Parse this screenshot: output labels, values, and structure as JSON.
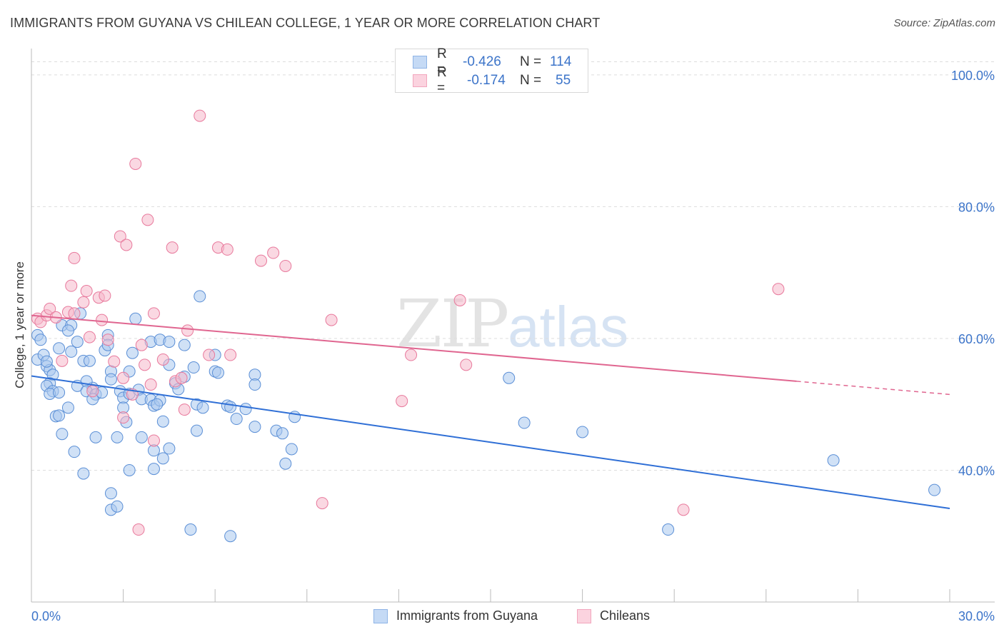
{
  "header": {
    "title": "IMMIGRANTS FROM GUYANA VS CHILEAN COLLEGE, 1 YEAR OR MORE CORRELATION CHART",
    "source": "Source: ZipAtlas.com"
  },
  "watermark": {
    "zip": "ZIP",
    "atlas": "atlas"
  },
  "legend": {
    "rows": [
      {
        "r_label": "R =",
        "r_value": "-0.426",
        "n_label": "N =",
        "n_value": "114",
        "color": "#a9c8ef"
      },
      {
        "r_label": "R =",
        "r_value": "-0.174",
        "n_label": "N =",
        "n_value": "55",
        "color": "#f6b8cb"
      }
    ]
  },
  "chart_data": {
    "type": "scatter",
    "title": "IMMIGRANTS FROM GUYANA VS CHILEAN COLLEGE, 1 YEAR OR MORE CORRELATION CHART",
    "xlabel": "",
    "ylabel": "College, 1 year or more",
    "xlim": [
      0,
      30
    ],
    "ylim": [
      20,
      104
    ],
    "x_tick_labels": [
      "0.0%",
      "30.0%"
    ],
    "y_ticks": [
      40,
      60,
      80,
      100
    ],
    "y_tick_labels": [
      "40.0%",
      "60.0%",
      "80.0%",
      "100.0%"
    ],
    "grid": "horizontal dashed",
    "legend_position": "top-center",
    "series": [
      {
        "name": "Immigrants from Guyana",
        "color": "#5b8fd6",
        "fill": "#a9c8ef",
        "trend": {
          "x": [
            0,
            30
          ],
          "y": [
            54.3,
            34.2
          ]
        },
        "points": [
          [
            0.2,
            60.5
          ],
          [
            0.3,
            59.8
          ],
          [
            0.2,
            56.8
          ],
          [
            0.4,
            57.5
          ],
          [
            0.5,
            55.8
          ],
          [
            0.6,
            55.2
          ],
          [
            0.5,
            56.5
          ],
          [
            0.7,
            54.5
          ],
          [
            0.6,
            53.2
          ],
          [
            0.5,
            52.8
          ],
          [
            0.7,
            52.0
          ],
          [
            0.6,
            51.6
          ],
          [
            0.9,
            51.8
          ],
          [
            0.8,
            48.2
          ],
          [
            0.9,
            48.3
          ],
          [
            1.2,
            49.5
          ],
          [
            1.0,
            45.5
          ],
          [
            1.4,
            42.8
          ],
          [
            1.0,
            62.0
          ],
          [
            1.3,
            62.0
          ],
          [
            1.2,
            61.2
          ],
          [
            1.6,
            63.8
          ],
          [
            1.5,
            59.5
          ],
          [
            1.3,
            58.0
          ],
          [
            0.9,
            58.5
          ],
          [
            1.7,
            56.6
          ],
          [
            1.9,
            56.6
          ],
          [
            2.0,
            52.5
          ],
          [
            1.5,
            52.8
          ],
          [
            1.8,
            53.5
          ],
          [
            1.8,
            52.0
          ],
          [
            2.1,
            51.5
          ],
          [
            2.0,
            50.8
          ],
          [
            2.3,
            51.8
          ],
          [
            2.5,
            60.5
          ],
          [
            2.4,
            58.2
          ],
          [
            2.5,
            59.0
          ],
          [
            2.6,
            55.0
          ],
          [
            2.6,
            53.8
          ],
          [
            2.9,
            52.0
          ],
          [
            3.0,
            51.0
          ],
          [
            3.2,
            51.6
          ],
          [
            3.5,
            52.2
          ],
          [
            3.3,
            57.8
          ],
          [
            3.9,
            59.5
          ],
          [
            3.4,
            63.0
          ],
          [
            3.2,
            55.0
          ],
          [
            3.0,
            49.5
          ],
          [
            3.1,
            47.3
          ],
          [
            3.6,
            50.8
          ],
          [
            3.9,
            50.7
          ],
          [
            4.0,
            49.8
          ],
          [
            4.2,
            50.6
          ],
          [
            4.1,
            50.0
          ],
          [
            4.3,
            47.4
          ],
          [
            4.2,
            59.8
          ],
          [
            4.5,
            59.5
          ],
          [
            4.5,
            56.0
          ],
          [
            4.7,
            53.2
          ],
          [
            4.8,
            52.3
          ],
          [
            5.0,
            59.0
          ],
          [
            5.0,
            54.2
          ],
          [
            5.3,
            55.6
          ],
          [
            5.4,
            50.0
          ],
          [
            5.6,
            49.5
          ],
          [
            5.4,
            46.0
          ],
          [
            5.5,
            66.4
          ],
          [
            6.0,
            57.5
          ],
          [
            6.0,
            55.0
          ],
          [
            6.1,
            54.8
          ],
          [
            6.4,
            49.8
          ],
          [
            6.7,
            47.8
          ],
          [
            6.5,
            49.6
          ],
          [
            7.0,
            49.3
          ],
          [
            7.3,
            54.5
          ],
          [
            7.3,
            53.0
          ],
          [
            7.3,
            46.6
          ],
          [
            8.0,
            46.0
          ],
          [
            8.2,
            45.6
          ],
          [
            8.5,
            43.2
          ],
          [
            8.6,
            48.1
          ],
          [
            8.3,
            41.0
          ],
          [
            2.1,
            45.0
          ],
          [
            2.8,
            45.0
          ],
          [
            3.6,
            45.0
          ],
          [
            4.5,
            43.3
          ],
          [
            4.3,
            41.8
          ],
          [
            4.0,
            43.0
          ],
          [
            2.6,
            36.5
          ],
          [
            2.6,
            34.0
          ],
          [
            2.8,
            34.5
          ],
          [
            3.2,
            40.0
          ],
          [
            4.0,
            40.2
          ],
          [
            1.7,
            39.5
          ],
          [
            5.2,
            31.0
          ],
          [
            6.5,
            30.0
          ],
          [
            15.6,
            54.0
          ],
          [
            16.1,
            47.2
          ],
          [
            18.0,
            45.8
          ],
          [
            26.2,
            41.5
          ],
          [
            29.5,
            37.0
          ],
          [
            20.8,
            31.0
          ]
        ]
      },
      {
        "name": "Chileans",
        "color": "#e8799c",
        "fill": "#f6b8cb",
        "trend": {
          "x": [
            0,
            25
          ],
          "y": [
            63.5,
            53.5
          ]
        },
        "trend_dashed": {
          "x": [
            25,
            30
          ],
          "y": [
            53.5,
            51.5
          ]
        },
        "points": [
          [
            0.2,
            63.0
          ],
          [
            0.3,
            62.5
          ],
          [
            0.5,
            63.5
          ],
          [
            0.6,
            64.5
          ],
          [
            0.8,
            63.2
          ],
          [
            1.0,
            56.6
          ],
          [
            1.2,
            64.0
          ],
          [
            1.4,
            63.8
          ],
          [
            1.3,
            68.0
          ],
          [
            1.4,
            72.2
          ],
          [
            1.7,
            65.5
          ],
          [
            1.8,
            67.2
          ],
          [
            1.9,
            60.2
          ],
          [
            2.0,
            52.0
          ],
          [
            2.3,
            62.8
          ],
          [
            2.2,
            66.2
          ],
          [
            2.4,
            66.5
          ],
          [
            2.5,
            59.8
          ],
          [
            2.7,
            56.5
          ],
          [
            2.9,
            75.5
          ],
          [
            3.1,
            74.2
          ],
          [
            3.0,
            54.0
          ],
          [
            3.0,
            48.0
          ],
          [
            3.3,
            51.5
          ],
          [
            3.4,
            86.5
          ],
          [
            3.6,
            59.0
          ],
          [
            3.7,
            56.0
          ],
          [
            3.8,
            78.0
          ],
          [
            3.9,
            53.0
          ],
          [
            4.0,
            44.5
          ],
          [
            4.0,
            63.8
          ],
          [
            4.3,
            56.8
          ],
          [
            4.6,
            73.8
          ],
          [
            4.7,
            53.5
          ],
          [
            4.9,
            54.0
          ],
          [
            5.0,
            49.2
          ],
          [
            5.1,
            61.2
          ],
          [
            5.5,
            93.8
          ],
          [
            5.8,
            57.5
          ],
          [
            6.1,
            73.8
          ],
          [
            6.4,
            73.5
          ],
          [
            6.5,
            57.5
          ],
          [
            7.5,
            71.8
          ],
          [
            7.9,
            73.0
          ],
          [
            8.3,
            71.0
          ],
          [
            3.5,
            31.0
          ],
          [
            9.5,
            35.0
          ],
          [
            9.8,
            62.8
          ],
          [
            12.4,
            57.5
          ],
          [
            12.1,
            50.5
          ],
          [
            14.0,
            65.8
          ],
          [
            14.2,
            56.0
          ],
          [
            21.3,
            34.0
          ],
          [
            24.4,
            67.5
          ]
        ]
      }
    ]
  }
}
